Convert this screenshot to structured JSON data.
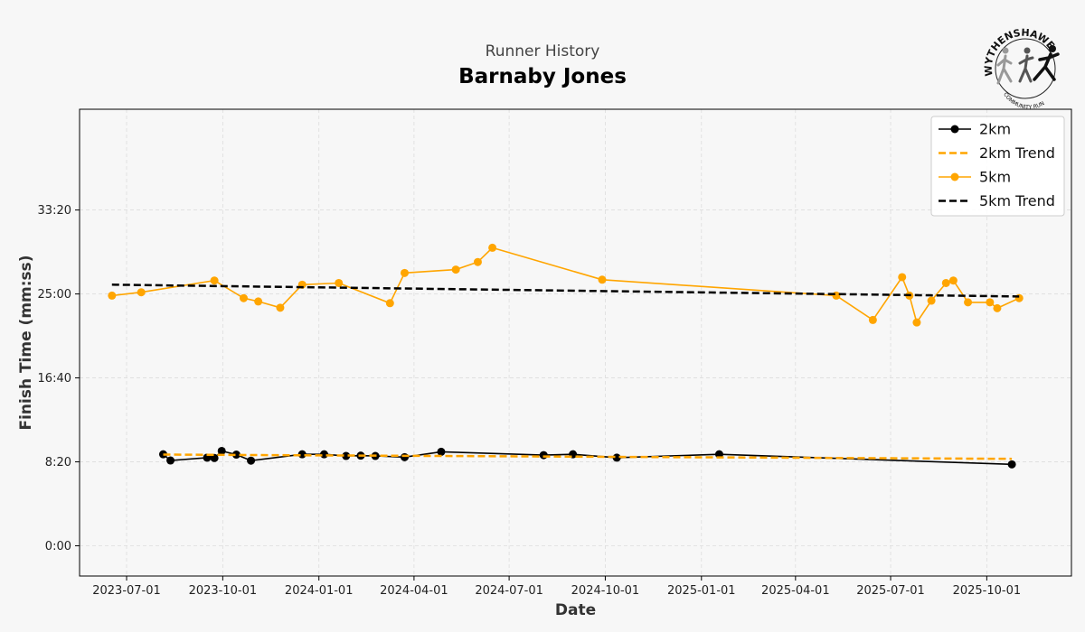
{
  "header": {
    "subtitle": "Runner History",
    "runner_name": "Barnaby Jones"
  },
  "logo": {
    "arc_text": "WYTHENSHAWE",
    "bottom_text": "COMMUNITY RUN",
    "icon": "runners-logo-icon"
  },
  "colors": {
    "black_series": "#000000",
    "orange_series": "#ffa500",
    "grid": "#dddddd"
  },
  "chart_data": {
    "type": "line",
    "title": "Barnaby Jones",
    "subtitle": "Runner History",
    "xlabel": "Date",
    "ylabel": "Finish Time (mm:ss)",
    "xlim": [
      "2023-05-17",
      "2025-12-21"
    ],
    "ylim_seconds": [
      -180,
      2600
    ],
    "x_ticks": [
      "2023-07-01",
      "2023-10-01",
      "2024-01-01",
      "2024-04-01",
      "2024-07-01",
      "2024-10-01",
      "2025-01-01",
      "2025-04-01",
      "2025-07-01",
      "2025-10-01"
    ],
    "y_ticks_seconds": [
      0,
      500,
      1000,
      1500,
      2000
    ],
    "y_tick_labels": [
      "0:00",
      "8:20",
      "16:40",
      "25:00",
      "33:20"
    ],
    "grid": true,
    "legend_position": "top-right",
    "series": [
      {
        "name": "2km",
        "color": "#000000",
        "style": "solid-markers",
        "points": [
          {
            "x": "2023-08-05",
            "y": 545
          },
          {
            "x": "2023-08-12",
            "y": 508
          },
          {
            "x": "2023-09-16",
            "y": 525
          },
          {
            "x": "2023-09-23",
            "y": 523
          },
          {
            "x": "2023-09-30",
            "y": 565
          },
          {
            "x": "2023-10-14",
            "y": 543
          },
          {
            "x": "2023-10-28",
            "y": 507
          },
          {
            "x": "2023-12-16",
            "y": 545
          },
          {
            "x": "2024-01-06",
            "y": 545
          },
          {
            "x": "2024-01-27",
            "y": 535
          },
          {
            "x": "2024-02-10",
            "y": 537
          },
          {
            "x": "2024-02-24",
            "y": 535
          },
          {
            "x": "2024-03-23",
            "y": 528
          },
          {
            "x": "2024-04-27",
            "y": 560
          },
          {
            "x": "2024-08-03",
            "y": 540
          },
          {
            "x": "2024-08-31",
            "y": 545
          },
          {
            "x": "2024-10-12",
            "y": 525
          },
          {
            "x": "2025-01-18",
            "y": 545
          },
          {
            "x": "2025-10-25",
            "y": 485
          }
        ]
      },
      {
        "name": "2km Trend",
        "color": "#ffa500",
        "style": "dashed",
        "points": [
          {
            "x": "2023-08-05",
            "y": 543
          },
          {
            "x": "2025-10-25",
            "y": 518
          }
        ]
      },
      {
        "name": "5km",
        "color": "#ffa500",
        "style": "solid-markers",
        "points": [
          {
            "x": "2023-06-17",
            "y": 1490
          },
          {
            "x": "2023-07-15",
            "y": 1510
          },
          {
            "x": "2023-09-23",
            "y": 1580
          },
          {
            "x": "2023-10-21",
            "y": 1475
          },
          {
            "x": "2023-11-04",
            "y": 1455
          },
          {
            "x": "2023-11-25",
            "y": 1418
          },
          {
            "x": "2023-12-16",
            "y": 1555
          },
          {
            "x": "2024-01-20",
            "y": 1565
          },
          {
            "x": "2024-03-09",
            "y": 1445
          },
          {
            "x": "2024-03-23",
            "y": 1625
          },
          {
            "x": "2024-05-11",
            "y": 1645
          },
          {
            "x": "2024-06-01",
            "y": 1690
          },
          {
            "x": "2024-06-15",
            "y": 1775
          },
          {
            "x": "2024-09-28",
            "y": 1585
          },
          {
            "x": "2025-05-10",
            "y": 1490
          },
          {
            "x": "2025-06-14",
            "y": 1345
          },
          {
            "x": "2025-07-12",
            "y": 1600
          },
          {
            "x": "2025-07-19",
            "y": 1490
          },
          {
            "x": "2025-07-26",
            "y": 1330
          },
          {
            "x": "2025-08-09",
            "y": 1460
          },
          {
            "x": "2025-08-23",
            "y": 1565
          },
          {
            "x": "2025-08-30",
            "y": 1580
          },
          {
            "x": "2025-09-13",
            "y": 1450
          },
          {
            "x": "2025-10-04",
            "y": 1450
          },
          {
            "x": "2025-10-11",
            "y": 1415
          },
          {
            "x": "2025-11-01",
            "y": 1475
          }
        ]
      },
      {
        "name": "5km Trend",
        "color": "#000000",
        "style": "dashed",
        "points": [
          {
            "x": "2023-06-17",
            "y": 1555
          },
          {
            "x": "2025-11-01",
            "y": 1485
          }
        ]
      }
    ]
  }
}
